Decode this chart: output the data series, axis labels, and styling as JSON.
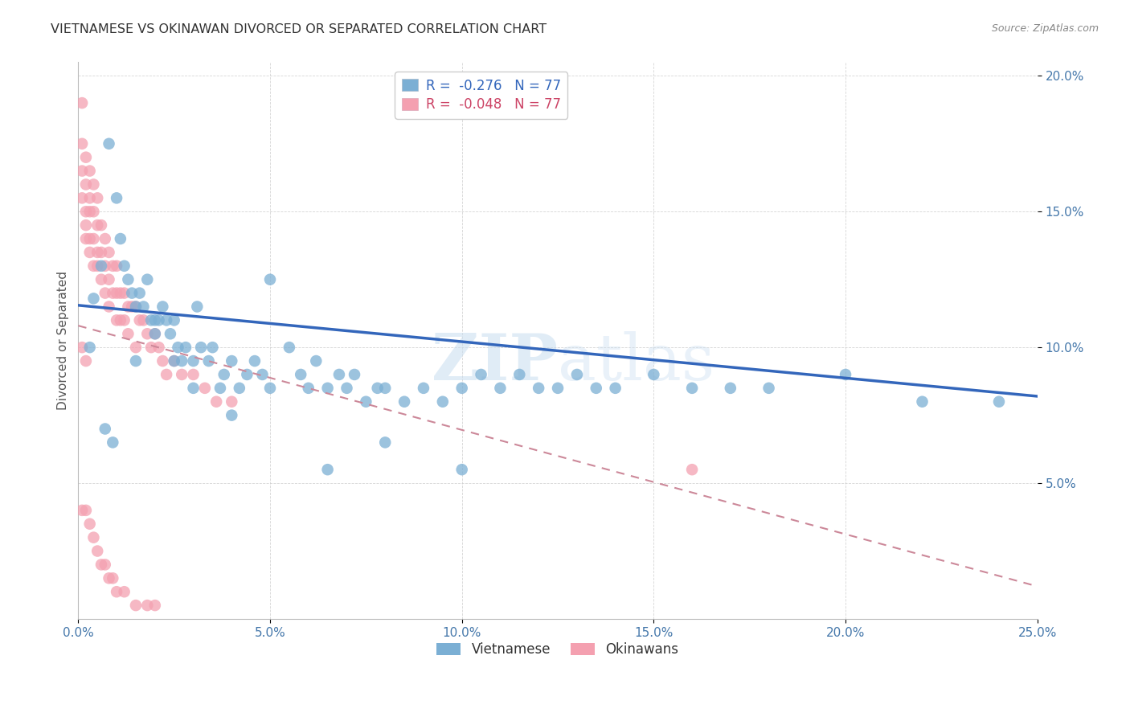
{
  "title": "VIETNAMESE VS OKINAWAN DIVORCED OR SEPARATED CORRELATION CHART",
  "source": "Source: ZipAtlas.com",
  "ylabel": "Divorced or Separated",
  "xlim": [
    0.0,
    0.25
  ],
  "ylim": [
    0.0,
    0.205
  ],
  "xticks": [
    0.0,
    0.05,
    0.1,
    0.15,
    0.2,
    0.25
  ],
  "yticks": [
    0.05,
    0.1,
    0.15,
    0.2
  ],
  "ytick_labels": [
    "5.0%",
    "10.0%",
    "15.0%",
    "20.0%"
  ],
  "xtick_labels": [
    "0.0%",
    "5.0%",
    "10.0%",
    "15.0%",
    "20.0%",
    "25.0%"
  ],
  "blue_scatter_x": [
    0.004,
    0.006,
    0.008,
    0.01,
    0.011,
    0.012,
    0.013,
    0.014,
    0.015,
    0.016,
    0.017,
    0.018,
    0.019,
    0.02,
    0.021,
    0.022,
    0.023,
    0.024,
    0.025,
    0.026,
    0.027,
    0.028,
    0.03,
    0.031,
    0.032,
    0.034,
    0.035,
    0.037,
    0.038,
    0.04,
    0.042,
    0.044,
    0.046,
    0.048,
    0.05,
    0.055,
    0.058,
    0.06,
    0.062,
    0.065,
    0.068,
    0.07,
    0.072,
    0.075,
    0.078,
    0.08,
    0.085,
    0.09,
    0.095,
    0.1,
    0.105,
    0.11,
    0.115,
    0.12,
    0.125,
    0.13,
    0.135,
    0.14,
    0.15,
    0.16,
    0.17,
    0.18,
    0.2,
    0.22,
    0.24,
    0.003,
    0.007,
    0.009,
    0.015,
    0.02,
    0.025,
    0.03,
    0.04,
    0.05,
    0.065,
    0.08,
    0.1
  ],
  "blue_scatter_y": [
    0.118,
    0.13,
    0.175,
    0.155,
    0.14,
    0.13,
    0.125,
    0.12,
    0.115,
    0.12,
    0.115,
    0.125,
    0.11,
    0.105,
    0.11,
    0.115,
    0.11,
    0.105,
    0.11,
    0.1,
    0.095,
    0.1,
    0.095,
    0.115,
    0.1,
    0.095,
    0.1,
    0.085,
    0.09,
    0.095,
    0.085,
    0.09,
    0.095,
    0.09,
    0.125,
    0.1,
    0.09,
    0.085,
    0.095,
    0.085,
    0.09,
    0.085,
    0.09,
    0.08,
    0.085,
    0.085,
    0.08,
    0.085,
    0.08,
    0.085,
    0.09,
    0.085,
    0.09,
    0.085,
    0.085,
    0.09,
    0.085,
    0.085,
    0.09,
    0.085,
    0.085,
    0.085,
    0.09,
    0.08,
    0.08,
    0.1,
    0.07,
    0.065,
    0.095,
    0.11,
    0.095,
    0.085,
    0.075,
    0.085,
    0.055,
    0.065,
    0.055
  ],
  "pink_scatter_x": [
    0.001,
    0.001,
    0.001,
    0.001,
    0.002,
    0.002,
    0.002,
    0.002,
    0.002,
    0.003,
    0.003,
    0.003,
    0.003,
    0.003,
    0.004,
    0.004,
    0.004,
    0.004,
    0.005,
    0.005,
    0.005,
    0.005,
    0.006,
    0.006,
    0.006,
    0.007,
    0.007,
    0.007,
    0.008,
    0.008,
    0.008,
    0.009,
    0.009,
    0.01,
    0.01,
    0.01,
    0.011,
    0.011,
    0.012,
    0.012,
    0.013,
    0.013,
    0.014,
    0.015,
    0.015,
    0.016,
    0.017,
    0.018,
    0.019,
    0.02,
    0.021,
    0.022,
    0.023,
    0.025,
    0.027,
    0.03,
    0.033,
    0.036,
    0.04,
    0.001,
    0.001,
    0.002,
    0.002,
    0.003,
    0.004,
    0.005,
    0.006,
    0.007,
    0.008,
    0.009,
    0.01,
    0.012,
    0.015,
    0.018,
    0.02,
    0.16
  ],
  "pink_scatter_y": [
    0.19,
    0.175,
    0.165,
    0.155,
    0.17,
    0.16,
    0.15,
    0.145,
    0.14,
    0.165,
    0.155,
    0.15,
    0.14,
    0.135,
    0.16,
    0.15,
    0.14,
    0.13,
    0.155,
    0.145,
    0.135,
    0.13,
    0.145,
    0.135,
    0.125,
    0.14,
    0.13,
    0.12,
    0.135,
    0.125,
    0.115,
    0.13,
    0.12,
    0.13,
    0.12,
    0.11,
    0.12,
    0.11,
    0.12,
    0.11,
    0.115,
    0.105,
    0.115,
    0.115,
    0.1,
    0.11,
    0.11,
    0.105,
    0.1,
    0.105,
    0.1,
    0.095,
    0.09,
    0.095,
    0.09,
    0.09,
    0.085,
    0.08,
    0.08,
    0.1,
    0.04,
    0.095,
    0.04,
    0.035,
    0.03,
    0.025,
    0.02,
    0.02,
    0.015,
    0.015,
    0.01,
    0.01,
    0.005,
    0.005,
    0.005,
    0.055
  ],
  "blue_line_x": [
    0.0,
    0.25
  ],
  "blue_line_y": [
    0.1155,
    0.082
  ],
  "pink_line_x": [
    0.0,
    0.25
  ],
  "pink_line_y": [
    0.108,
    0.012
  ],
  "watermark_zip": "ZIP",
  "watermark_atlas": "atlas",
  "blue_color": "#7bafd4",
  "pink_color": "#f4a0b0",
  "blue_edge_color": "#6699cc",
  "pink_edge_color": "#e8889a",
  "blue_line_color": "#3366bb",
  "pink_line_color": "#cc8899",
  "grid_color": "#cccccc",
  "title_color": "#333333",
  "axis_tick_color": "#4477aa",
  "ylabel_color": "#555555",
  "source_color": "#888888",
  "background_color": "#ffffff",
  "legend_r_blue": "-0.276",
  "legend_r_pink": "-0.048",
  "legend_n": "77"
}
